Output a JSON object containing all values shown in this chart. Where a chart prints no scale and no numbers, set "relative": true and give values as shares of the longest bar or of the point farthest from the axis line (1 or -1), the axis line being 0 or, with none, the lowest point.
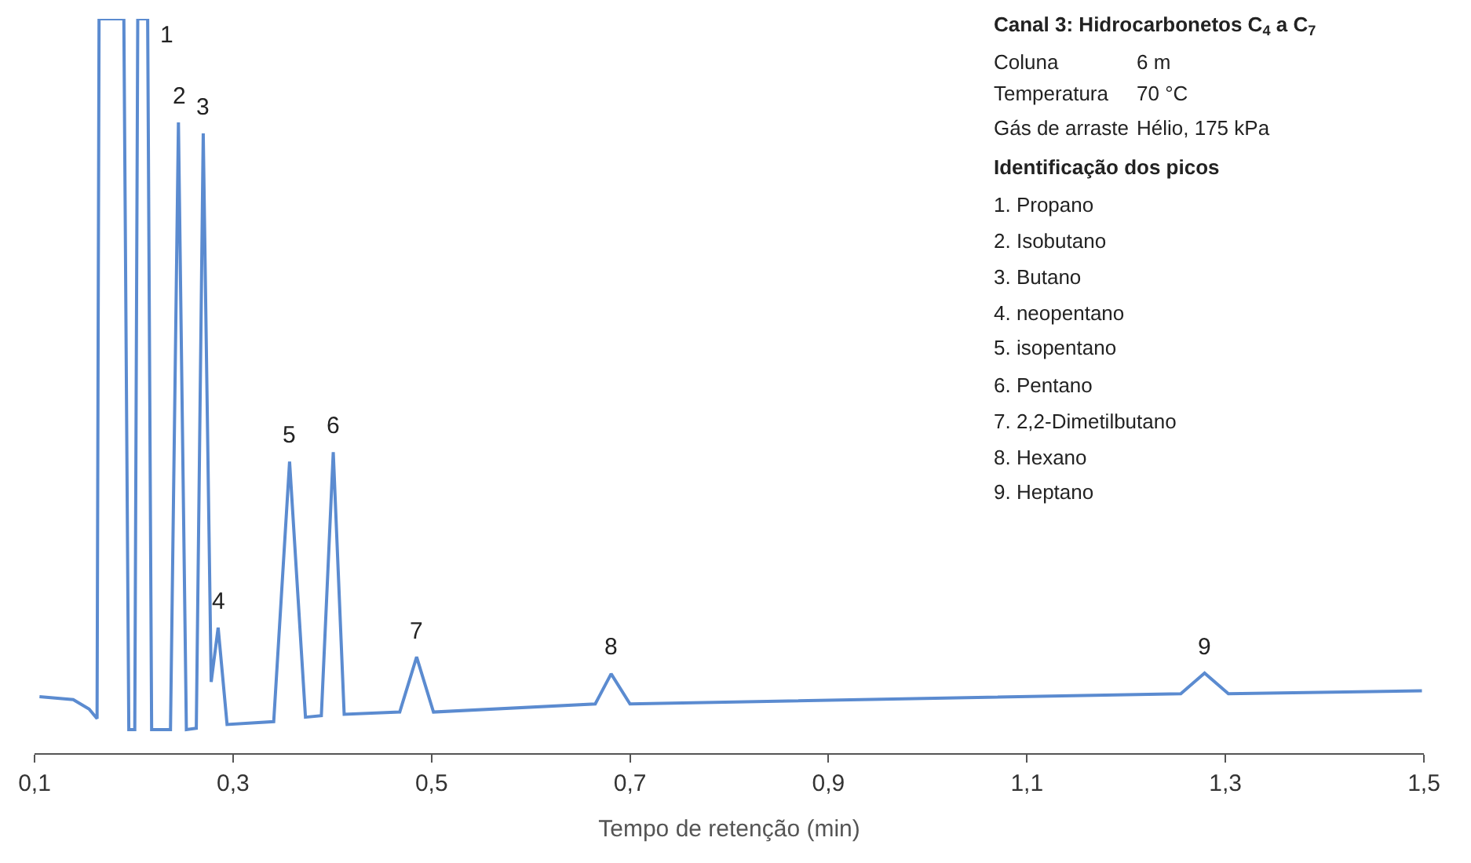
{
  "chart_data": {
    "type": "line",
    "relative": true,
    "xlabel": "Tempo de retenção (min)",
    "x": [
      0.105,
      0.139,
      0.155,
      0.163,
      0.165,
      0.19,
      0.195,
      0.201,
      0.204,
      0.214,
      0.218,
      0.237,
      0.245,
      0.253,
      0.263,
      0.27,
      0.278,
      0.285,
      0.294,
      0.341,
      0.357,
      0.373,
      0.389,
      0.401,
      0.412,
      0.468,
      0.485,
      0.502,
      0.665,
      0.681,
      0.7,
      1.255,
      1.279,
      1.303,
      1.498
    ],
    "series": [
      {
        "color": "#5b8bd0",
        "values": [
          0.077,
          0.073,
          0.06,
          0.047,
          1.0,
          1.0,
          0.032,
          0.032,
          1.0,
          1.0,
          0.032,
          0.032,
          0.859,
          0.032,
          0.034,
          0.844,
          0.097,
          0.171,
          0.039,
          0.043,
          0.397,
          0.049,
          0.051,
          0.41,
          0.053,
          0.056,
          0.131,
          0.056,
          0.067,
          0.108,
          0.067,
          0.081,
          0.109,
          0.081,
          0.085
        ]
      }
    ],
    "xlim": [
      0.1,
      1.5
    ],
    "xticks": [
      {
        "value": 0.1,
        "label": "0,1"
      },
      {
        "value": 0.3,
        "label": "0,3"
      },
      {
        "value": 0.5,
        "label": "0,5"
      },
      {
        "value": 0.7,
        "label": "0,7"
      },
      {
        "value": 0.9,
        "label": "0,9"
      },
      {
        "value": 1.1,
        "label": "1,1"
      },
      {
        "value": 1.3,
        "label": "1,3"
      },
      {
        "value": 1.5,
        "label": "1,5"
      }
    ],
    "marker": "none",
    "line_style": "solid",
    "annotations": [
      "Canal 3: Hidrocarbonetos C$_{4}$ a C$_{7}$",
      "Coluna",
      "6 m",
      "Temperatura",
      "70 °C",
      "Gás de arraste",
      "Hélio, 175 kPa",
      "Identificação dos picos",
      "1. Propano",
      "2. Isobutano",
      "3. Butano",
      "4. neopentano",
      "5. isopentano",
      "6. Pentano",
      "7. 2,2-Dimetilbutano",
      "8. Hexano",
      "9. Heptano",
      {
        "text": "1",
        "x": 0.214,
        "y": 1.0
      },
      {
        "text": "2",
        "x": 0.245,
        "y": 0.859
      },
      {
        "text": "3",
        "x": 0.27,
        "y": 0.844
      },
      {
        "text": "4",
        "x": 0.285,
        "y": 0.171
      },
      {
        "text": "5",
        "x": 0.357,
        "y": 0.397
      },
      {
        "text": "6",
        "x": 0.401,
        "y": 0.41
      },
      {
        "text": "7",
        "x": 0.485,
        "y": 0.131
      },
      {
        "text": "8",
        "x": 0.681,
        "y": 0.108
      },
      {
        "text": "9",
        "x": 1.279,
        "y": 0.109
      }
    ]
  }
}
